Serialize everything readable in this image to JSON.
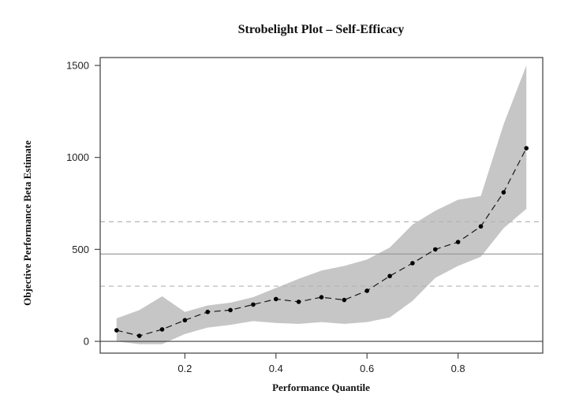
{
  "chart_data": {
    "type": "line",
    "title": "Strobelight Plot – Self-Efficacy",
    "xlabel": "Performance Quantile",
    "ylabel": "Objective Performance Beta Estimate",
    "x": [
      0.05,
      0.1,
      0.15,
      0.2,
      0.25,
      0.3,
      0.35,
      0.4,
      0.45,
      0.5,
      0.55,
      0.6,
      0.65,
      0.7,
      0.75,
      0.8,
      0.85,
      0.9,
      0.95
    ],
    "series": [
      {
        "name": "beta-estimate",
        "style": "dashed-line-with-points",
        "color": "#1a1a1a",
        "values": [
          60,
          30,
          65,
          115,
          160,
          170,
          200,
          230,
          215,
          240,
          225,
          275,
          355,
          425,
          500,
          540,
          625,
          810,
          1050
        ]
      }
    ],
    "band": {
      "name": "confidence-band",
      "color": "#c6c6c6",
      "lower": [
        0,
        -15,
        -15,
        40,
        75,
        90,
        110,
        100,
        95,
        105,
        95,
        105,
        130,
        220,
        345,
        410,
        460,
        615,
        720
      ],
      "upper": [
        125,
        170,
        245,
        160,
        195,
        210,
        240,
        290,
        340,
        385,
        410,
        445,
        510,
        635,
        710,
        770,
        790,
        1180,
        1500
      ]
    },
    "reference_lines": [
      {
        "value": 650,
        "style": "dashed",
        "color": "#b3b3b3"
      },
      {
        "value": 475,
        "style": "solid",
        "color": "#9b9b9b"
      },
      {
        "value": 300,
        "style": "dashed",
        "color": "#b3b3b3"
      },
      {
        "value": 0,
        "style": "solid",
        "color": "#3d3d3d"
      }
    ],
    "x_ticks": [
      0.2,
      0.4,
      0.6,
      0.8
    ],
    "y_ticks": [
      0,
      500,
      1000,
      1500
    ],
    "xlim": [
      0.014,
      0.986
    ],
    "ylim": [
      -64,
      1543
    ],
    "grid": false,
    "legend_position": "none",
    "frame_color": "#4a4a4a",
    "background": "#ffffff"
  }
}
